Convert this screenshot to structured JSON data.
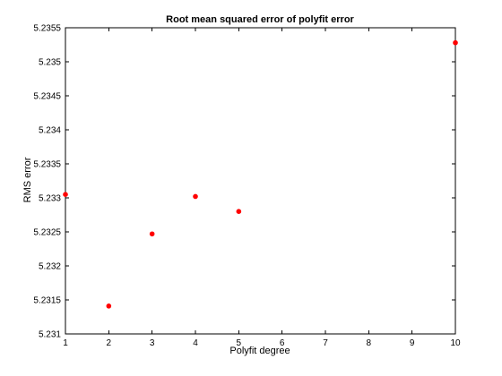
{
  "chart_data": {
    "type": "scatter",
    "title": "Root mean squared error of polyfit error",
    "xlabel": "Polyfit degree",
    "ylabel": "RMS error",
    "xlim": [
      1,
      10
    ],
    "ylim": [
      5.231,
      5.2355
    ],
    "x_ticks": [
      "1",
      "2",
      "3",
      "4",
      "5",
      "6",
      "7",
      "8",
      "9",
      "10"
    ],
    "y_ticks": [
      "5.231",
      "5.2315",
      "5.232",
      "5.2325",
      "5.233",
      "5.2335",
      "5.234",
      "5.2345",
      "5.235",
      "5.2355"
    ],
    "grid": false,
    "legend": "none",
    "series": [
      {
        "marker_color": "#ff0000",
        "points": [
          {
            "x": 1,
            "y": 5.23305
          },
          {
            "x": 2,
            "y": 5.23141
          },
          {
            "x": 3,
            "y": 5.23247
          },
          {
            "x": 4,
            "y": 5.23302
          },
          {
            "x": 5,
            "y": 5.2328
          },
          {
            "x": 10,
            "y": 5.23528
          }
        ]
      }
    ]
  }
}
